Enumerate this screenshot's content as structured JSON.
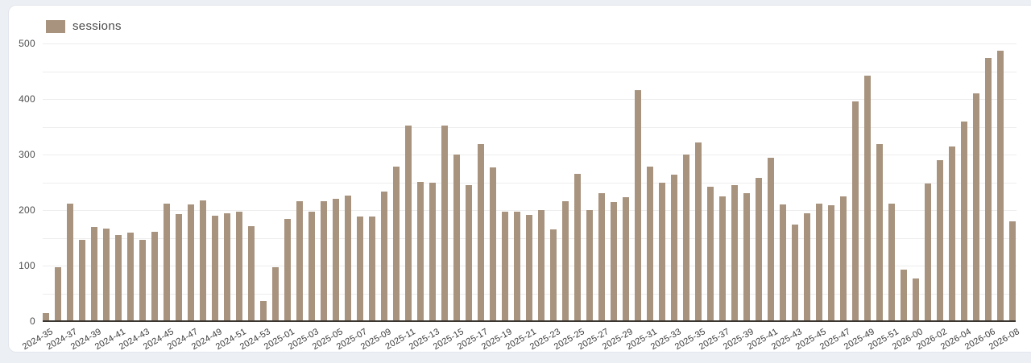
{
  "colors": {
    "page_background": "#eceff4",
    "card_background": "#ffffff",
    "card_border": "#e2e6ec",
    "bar": "#a8937e",
    "axis_baseline": "#3d3732",
    "gridline": "#ededed",
    "y_label": "#4d4d4d",
    "x_label": "#3a3a3a",
    "legend_text": "#4a4a4a"
  },
  "chart_data": {
    "type": "bar",
    "title": "",
    "xlabel": "",
    "ylabel": "",
    "legend": {
      "label": "sessions",
      "position": "top-left"
    },
    "ylim": [
      0,
      500
    ],
    "ytick_interval": 100,
    "gridline_interval": 50,
    "grid": true,
    "xtick_label_every": 2,
    "yticks": [
      "0",
      "100",
      "200",
      "300",
      "400",
      "500"
    ],
    "categories": [
      "2024-35",
      "2024-36",
      "2024-37",
      "2024-38",
      "2024-39",
      "2024-40",
      "2024-41",
      "2024-42",
      "2024-43",
      "2024-44",
      "2024-45",
      "2024-46",
      "2024-47",
      "2024-48",
      "2024-49",
      "2024-50",
      "2024-51",
      "2024-52",
      "2024-53",
      "2025-00",
      "2025-01",
      "2025-02",
      "2025-03",
      "2025-04",
      "2025-05",
      "2025-06",
      "2025-07",
      "2025-08",
      "2025-09",
      "2025-10",
      "2025-11",
      "2025-12",
      "2025-13",
      "2025-14",
      "2025-15",
      "2025-16",
      "2025-17",
      "2025-18",
      "2025-19",
      "2025-20",
      "2025-21",
      "2025-22",
      "2025-23",
      "2025-24",
      "2025-25",
      "2025-26",
      "2025-27",
      "2025-28",
      "2025-29",
      "2025-30",
      "2025-31",
      "2025-32",
      "2025-33",
      "2025-34",
      "2025-35",
      "2025-36",
      "2025-37",
      "2025-38",
      "2025-39",
      "2025-40",
      "2025-41",
      "2025-42",
      "2025-43",
      "2025-44",
      "2025-45",
      "2025-46",
      "2025-47",
      "2025-48",
      "2025-49",
      "2025-50",
      "2025-51",
      "2025-52",
      "2026-00",
      "2026-01",
      "2026-02",
      "2026-03",
      "2026-04",
      "2026-05",
      "2026-06",
      "2026-07",
      "2026-08"
    ],
    "values": [
      14,
      98,
      212,
      146,
      170,
      167,
      156,
      159,
      146,
      161,
      212,
      193,
      210,
      218,
      190,
      194,
      197,
      172,
      36,
      98,
      184,
      216,
      198,
      216,
      220,
      226,
      189,
      188,
      234,
      279,
      353,
      251,
      249,
      353,
      300,
      245,
      319,
      277,
      197,
      198,
      191,
      200,
      165,
      216,
      266,
      200,
      231,
      215,
      224,
      416,
      278,
      249,
      264,
      300,
      322,
      243,
      225,
      246,
      231,
      258,
      294,
      210,
      174,
      195,
      212,
      209,
      225,
      396,
      442,
      320,
      212,
      93,
      77,
      248,
      290,
      315,
      360,
      411,
      474,
      488,
      180
    ]
  }
}
